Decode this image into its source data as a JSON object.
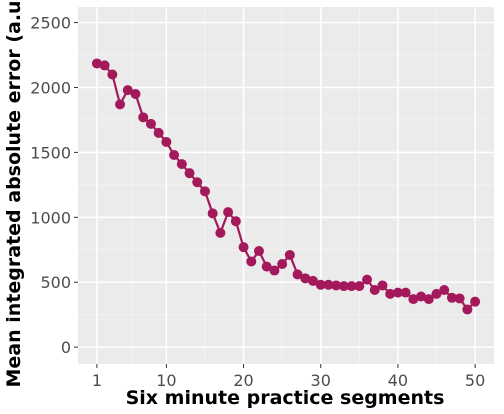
{
  "chart_data": {
    "type": "line",
    "title": "",
    "xlabel": "Six minute practice segments",
    "ylabel": "Mean integrated absolute error (a.u.)",
    "xlim": [
      -1.45,
      52.45
    ],
    "ylim": [
      -130,
      2620
    ],
    "x_ticks": [
      1,
      10,
      20,
      30,
      40,
      50
    ],
    "y_ticks": [
      0,
      500,
      1000,
      1500,
      2000,
      2500
    ],
    "grid": true,
    "legend": "none",
    "colors": {
      "series": "#a3195b",
      "panel": "#ebebeb",
      "grid_major": "#ffffff",
      "grid_minor": "#f5f5f5"
    },
    "series": [
      {
        "x": [
          1,
          2,
          3,
          4,
          5,
          6,
          7,
          8,
          9,
          10,
          11,
          12,
          13,
          14,
          15,
          16,
          17,
          18,
          19,
          20,
          21,
          22,
          23,
          24,
          25,
          26,
          27,
          28,
          29,
          30,
          31,
          32,
          33,
          34,
          35,
          36,
          37,
          38,
          39,
          40,
          41,
          42,
          43,
          44,
          45,
          46,
          47,
          48,
          49,
          50
        ],
        "values": [
          2185,
          2170,
          2100,
          1870,
          1980,
          1950,
          1770,
          1720,
          1650,
          1580,
          1480,
          1410,
          1340,
          1270,
          1200,
          1030,
          880,
          1040,
          970,
          770,
          660,
          740,
          620,
          590,
          640,
          710,
          560,
          530,
          510,
          480,
          480,
          475,
          470,
          470,
          470,
          520,
          440,
          475,
          410,
          420,
          420,
          370,
          390,
          370,
          410,
          440,
          380,
          375,
          290,
          350
        ]
      }
    ]
  }
}
